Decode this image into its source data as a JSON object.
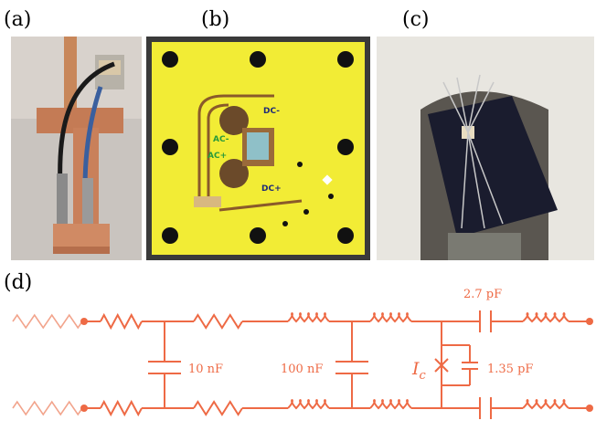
{
  "panels": {
    "a": {
      "label": "(a)"
    },
    "b": {
      "label": "(b)",
      "pcb_labels": [
        "DC-",
        "AC-",
        "AC+",
        "DC+"
      ]
    },
    "c": {
      "label": "(c)"
    },
    "d": {
      "label": "(d)",
      "circuit": {
        "capacitor_1": "10 nF",
        "capacitor_2": "100 nF",
        "junction": {
          "symbol": "I",
          "subscript": "c"
        },
        "junction_capacitor": "1.35 pF",
        "coupling_capacitor": "2.7 pF"
      }
    }
  }
}
